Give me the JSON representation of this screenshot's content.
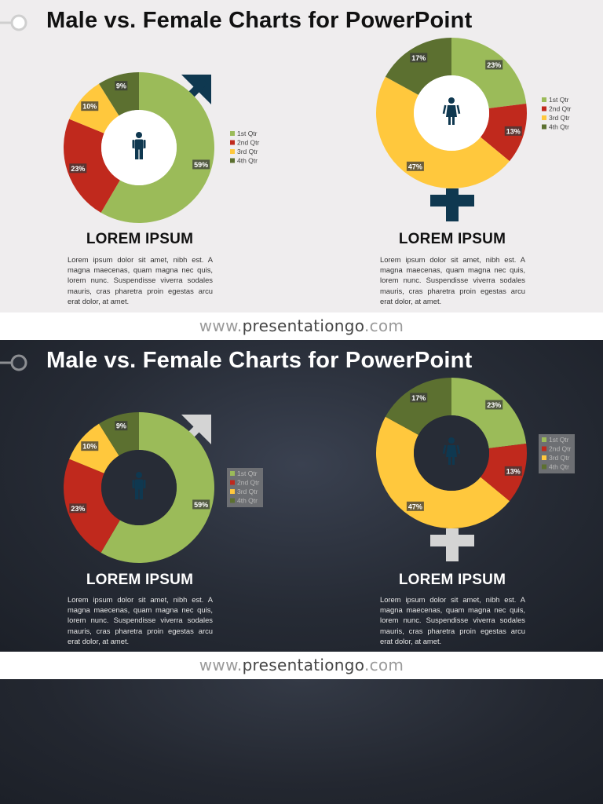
{
  "colors": {
    "q1": "#9bbb59",
    "q2": "#c0291d",
    "q3": "#ffc83d",
    "q4": "#5c7030",
    "navy": "#0f3850",
    "light_bg": "#efedee",
    "light_symbol": "#d4d4d4"
  },
  "slides": [
    {
      "theme": "light",
      "title": "Male vs. Female Charts for PowerPoint",
      "male": {
        "heading": "LOREM IPSUM",
        "body": "Lorem ipsum dolor sit amet, nibh est. A magna maecenas, quam magna nec quis, lorem nunc. Suspendisse viverra sodales mauris, cras pharetra proin egestas arcu erat dolor, at amet.",
        "icon": "male-person-icon",
        "symbol": "male-arrow-icon"
      },
      "female": {
        "heading": "LOREM IPSUM",
        "body": "Lorem ipsum dolor sit amet, nibh est. A magna maecenas, quam magna nec quis, lorem nunc. Suspendisse viverra sodales mauris, cras pharetra proin egestas arcu erat dolor, at amet.",
        "icon": "female-person-icon",
        "symbol": "female-cross-icon"
      }
    },
    {
      "theme": "dark",
      "title": "Male vs. Female Charts for PowerPoint",
      "male": {
        "heading": "LOREM IPSUM",
        "body": "Lorem ipsum dolor sit amet, nibh est. A magna maecenas, quam magna nec quis, lorem nunc. Suspendisse viverra sodales mauris, cras pharetra proin egestas arcu erat dolor, at amet.",
        "icon": "male-person-icon",
        "symbol": "male-arrow-icon"
      },
      "female": {
        "heading": "LOREM IPSUM",
        "body": "Lorem ipsum dolor sit amet, nibh est. A magna maecenas, quam magna nec quis, lorem nunc. Suspendisse viverra sodales mauris, cras pharetra proin egestas arcu erat dolor, at amet.",
        "icon": "female-person-icon",
        "symbol": "female-cross-icon"
      }
    }
  ],
  "footer": {
    "prefix": "www.",
    "brand": "presentationgo",
    "suffix": ".com"
  },
  "chart_data": [
    {
      "type": "pie",
      "variant": "donut",
      "slide": 1,
      "title": "",
      "categories": [
        "1st Qtr",
        "2nd Qtr",
        "3rd Qtr",
        "4th Qtr"
      ],
      "values": [
        59,
        23,
        10,
        9
      ],
      "data_labels": [
        "59%",
        "23%",
        "10%",
        "9%"
      ],
      "legend": [
        "1st Qtr",
        "2nd Qtr",
        "3rd Qtr",
        "4th Qtr"
      ],
      "legend_position": "right"
    },
    {
      "type": "pie",
      "variant": "donut",
      "slide": 1,
      "title": "",
      "categories": [
        "1st Qtr",
        "2nd Qtr",
        "3rd Qtr",
        "4th Qtr"
      ],
      "values": [
        23,
        13,
        47,
        17
      ],
      "data_labels": [
        "23%",
        "13%",
        "47%",
        "17%"
      ],
      "legend": [
        "1st Qtr",
        "2nd Qtr",
        "3rd Qtr",
        "4th Qtr"
      ],
      "legend_position": "right"
    },
    {
      "type": "pie",
      "variant": "donut",
      "slide": 2,
      "title": "",
      "categories": [
        "1st Qtr",
        "2nd Qtr",
        "3rd Qtr",
        "4th Qtr"
      ],
      "values": [
        59,
        23,
        10,
        9
      ],
      "data_labels": [
        "59%",
        "23%",
        "10%",
        "9%"
      ],
      "legend": [
        "1st Qtr",
        "2nd Qtr",
        "3rd Qtr",
        "4th Qtr"
      ],
      "legend_position": "right"
    },
    {
      "type": "pie",
      "variant": "donut",
      "slide": 2,
      "title": "",
      "categories": [
        "1st Qtr",
        "2nd Qtr",
        "3rd Qtr",
        "4th Qtr"
      ],
      "values": [
        23,
        13,
        47,
        17
      ],
      "data_labels": [
        "23%",
        "13%",
        "47%",
        "17%"
      ],
      "legend": [
        "1st Qtr",
        "2nd Qtr",
        "3rd Qtr",
        "4th Qtr"
      ],
      "legend_position": "right"
    }
  ]
}
